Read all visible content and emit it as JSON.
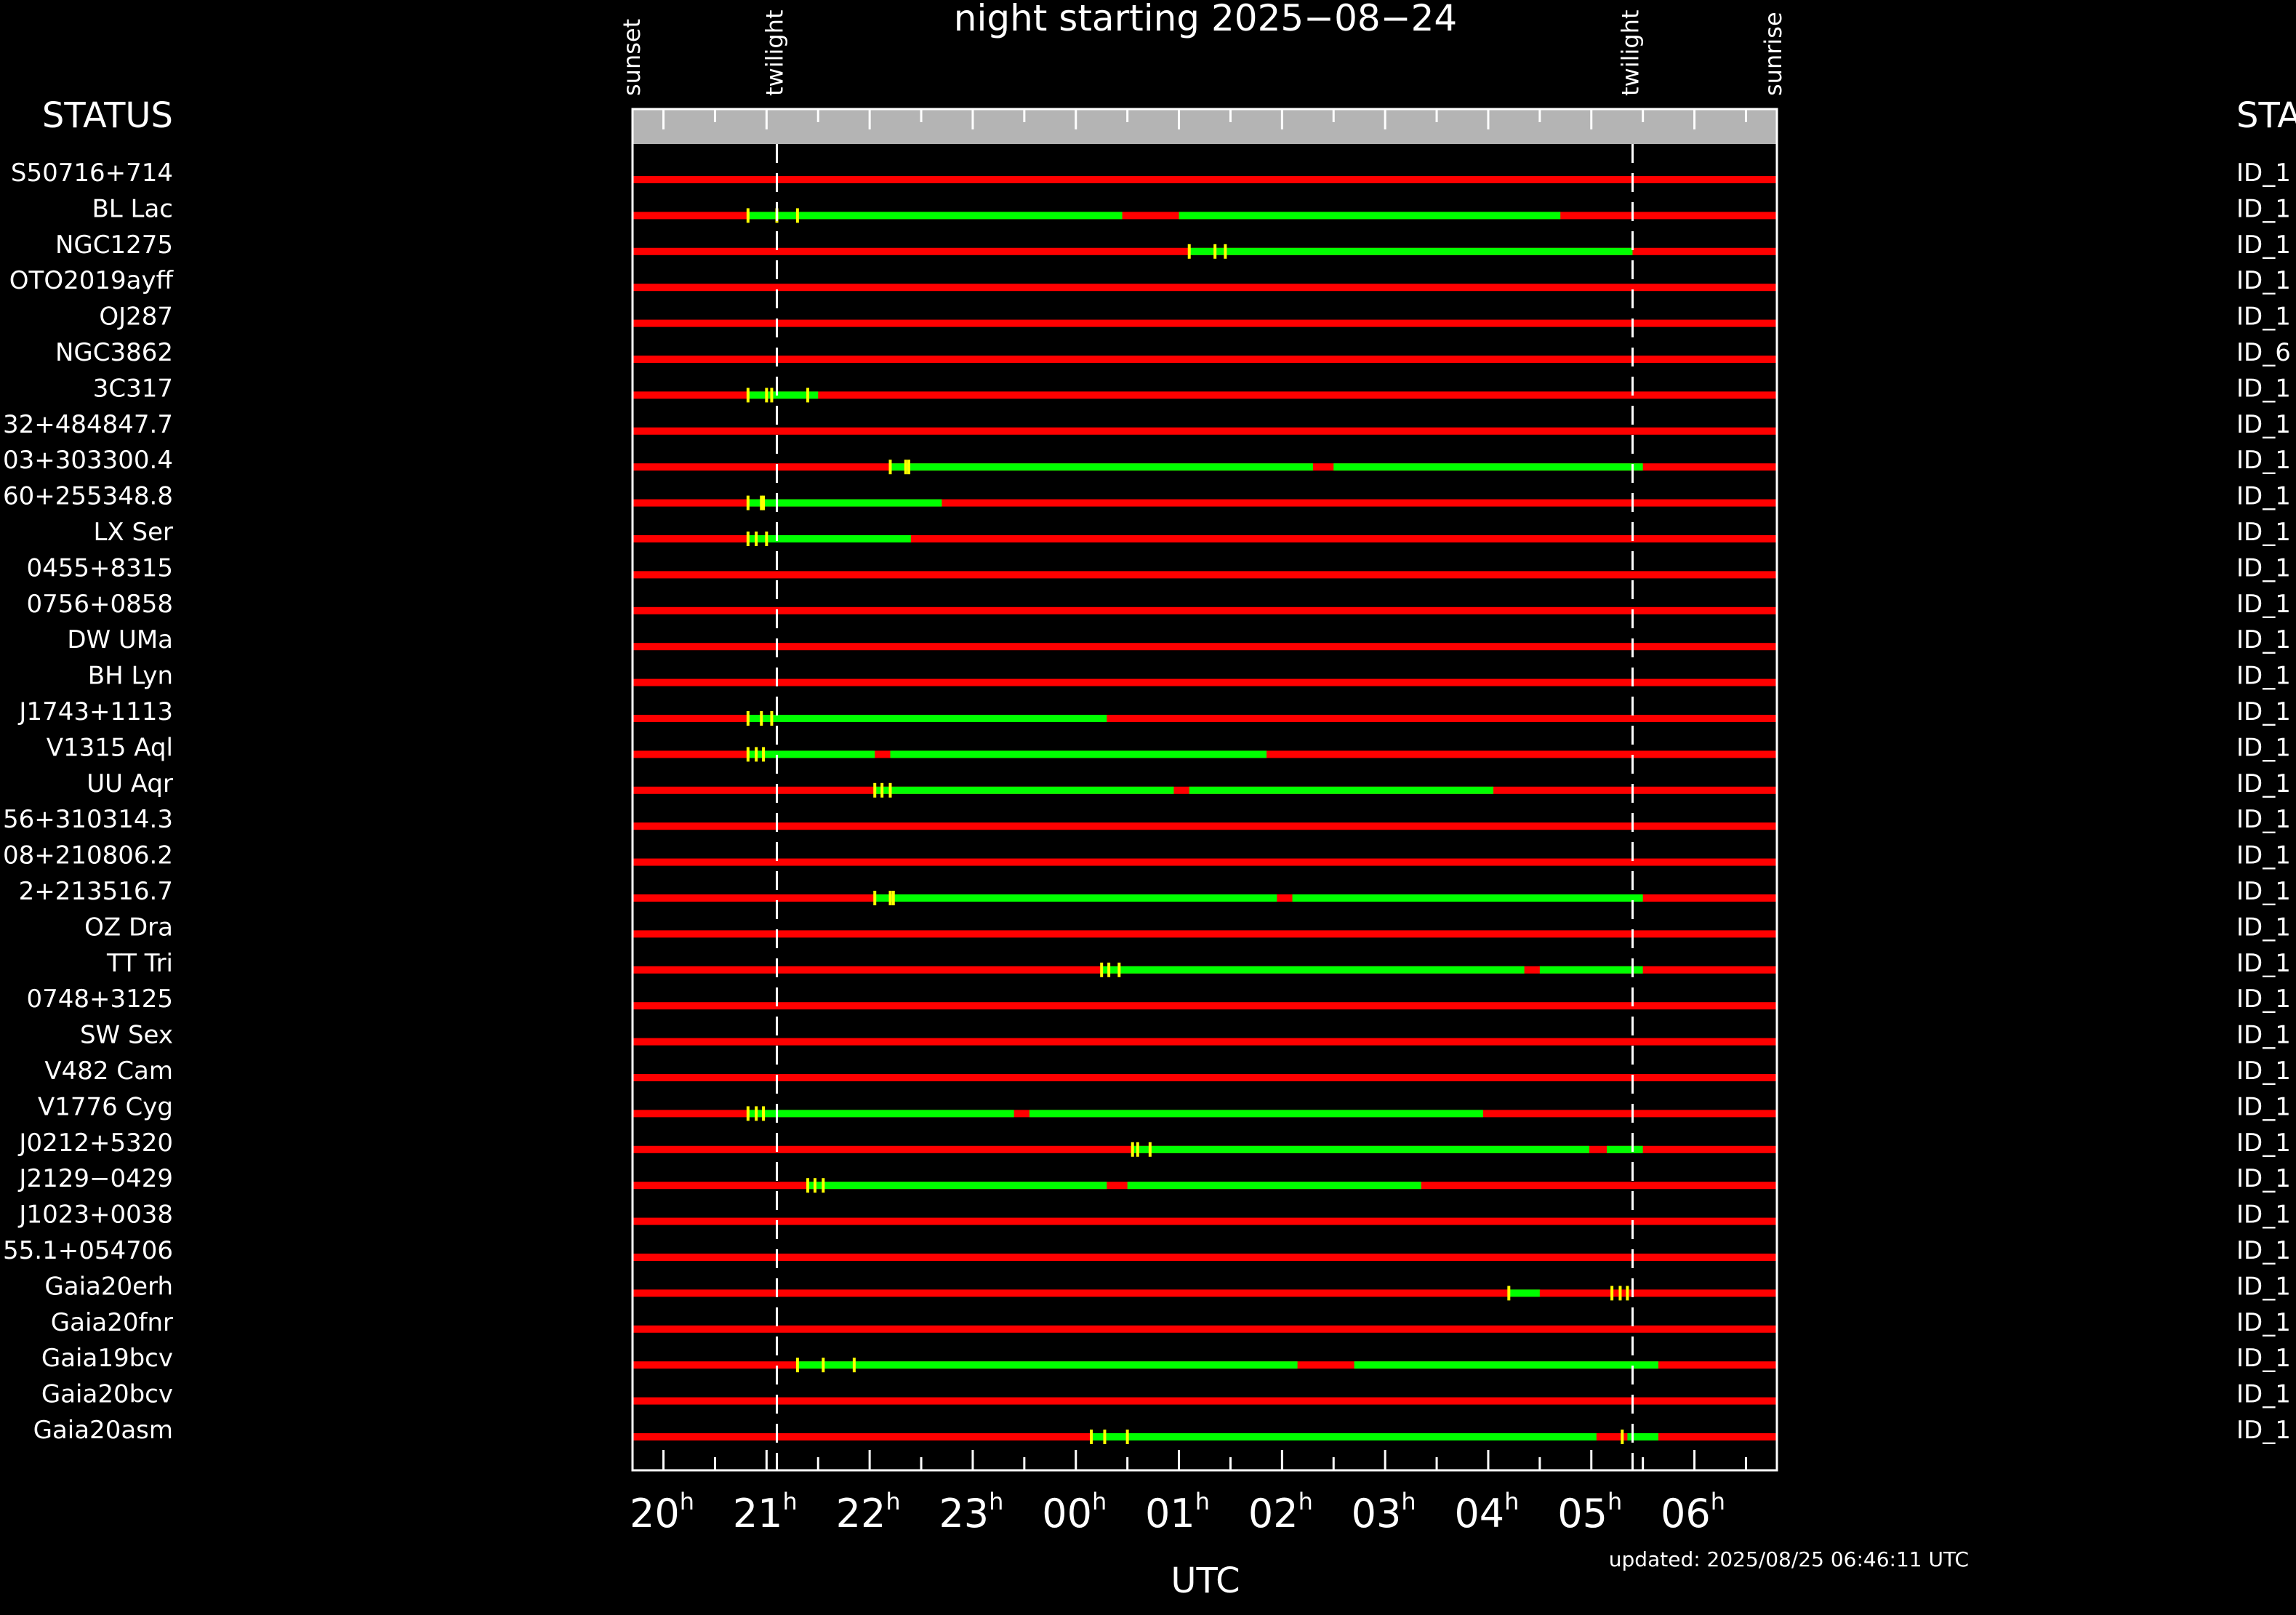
{
  "chart_data": {
    "type": "timeline",
    "title": "night starting 2025−08−24",
    "xlabel": "UTC",
    "updated": "updated: 2025/08/25 06:46:11 UTC",
    "left_header": "STATUS",
    "right_header": "STATUS",
    "x_range_utc_hours": [
      19.7,
      30.8
    ],
    "top_markers": [
      {
        "label": "sunset",
        "utc": 19.7
      },
      {
        "label": "twilight",
        "utc": 21.1
      },
      {
        "label": "twilight",
        "utc": 29.4
      },
      {
        "label": "sunrise",
        "utc": 30.8
      }
    ],
    "dashed_lines_utc": [
      21.1,
      29.4
    ],
    "x_ticks": [
      {
        "label": "20",
        "sup": "h",
        "utc": 20
      },
      {
        "label": "21",
        "sup": "h",
        "utc": 21
      },
      {
        "label": "22",
        "sup": "h",
        "utc": 22
      },
      {
        "label": "23",
        "sup": "h",
        "utc": 23
      },
      {
        "label": "00",
        "sup": "h",
        "utc": 24
      },
      {
        "label": "01",
        "sup": "h",
        "utc": 25
      },
      {
        "label": "02",
        "sup": "h",
        "utc": 26
      },
      {
        "label": "03",
        "sup": "h",
        "utc": 27
      },
      {
        "label": "04",
        "sup": "h",
        "utc": 28
      },
      {
        "label": "05",
        "sup": "h",
        "utc": 29
      },
      {
        "label": "06",
        "sup": "h",
        "utc": 30
      }
    ],
    "colors": {
      "not_visible": "#ff0000",
      "observable": "#00ff00",
      "marker": "#ffff00",
      "band": "#b4b4b4"
    },
    "rows": [
      {
        "name": "S50716+714",
        "status": "ID_1",
        "green": [],
        "markers": []
      },
      {
        "name": "BL Lac",
        "status": "ID_1",
        "green": [
          [
            20.82,
            24.45
          ],
          [
            25.0,
            28.7
          ]
        ],
        "markers": [
          20.82,
          21.1,
          21.3
        ]
      },
      {
        "name": "NGC1275",
        "status": "ID_1",
        "green": [
          [
            25.1,
            29.4
          ]
        ],
        "markers": [
          25.1,
          25.35,
          25.45
        ]
      },
      {
        "name": "OTO2019ayff",
        "status": "ID_1",
        "green": [],
        "markers": []
      },
      {
        "name": "OJ287",
        "status": "ID_1",
        "green": [],
        "markers": []
      },
      {
        "name": "NGC3862",
        "status": "ID_6",
        "green": [],
        "markers": []
      },
      {
        "name": "3C317",
        "status": "ID_1",
        "green": [
          [
            20.82,
            21.5
          ]
        ],
        "markers": [
          20.82,
          21.0,
          21.05,
          21.4
        ]
      },
      {
        "name": "32+484847.7",
        "status": "ID_1",
        "green": [],
        "markers": []
      },
      {
        "name": "03+303300.4",
        "status": "ID_1",
        "green": [
          [
            22.2,
            26.3
          ],
          [
            26.5,
            29.5
          ]
        ],
        "markers": [
          22.2,
          22.35,
          22.38
        ]
      },
      {
        "name": "60+255348.8",
        "status": "ID_1",
        "green": [
          [
            20.82,
            22.7
          ]
        ],
        "markers": [
          20.82,
          20.95,
          20.97
        ]
      },
      {
        "name": "LX Ser",
        "status": "ID_1",
        "green": [
          [
            20.82,
            22.4
          ]
        ],
        "markers": [
          20.82,
          20.9,
          21.0
        ]
      },
      {
        "name": "0455+8315",
        "status": "ID_1",
        "green": [],
        "markers": []
      },
      {
        "name": "0756+0858",
        "status": "ID_1",
        "green": [],
        "markers": []
      },
      {
        "name": "DW UMa",
        "status": "ID_1",
        "green": [],
        "markers": []
      },
      {
        "name": "BH Lyn",
        "status": "ID_1",
        "green": [],
        "markers": []
      },
      {
        "name": "J1743+1113",
        "status": "ID_1",
        "green": [
          [
            20.82,
            24.3
          ]
        ],
        "markers": [
          20.82,
          20.95,
          21.05
        ]
      },
      {
        "name": "V1315 Aql",
        "status": "ID_1",
        "green": [
          [
            20.82,
            22.05
          ],
          [
            22.2,
            25.85
          ]
        ],
        "markers": [
          20.82,
          20.9,
          20.97
        ]
      },
      {
        "name": "UU Aqr",
        "status": "ID_1",
        "green": [
          [
            22.05,
            24.95
          ],
          [
            25.1,
            28.05
          ]
        ],
        "markers": [
          22.05,
          22.12,
          22.2
        ]
      },
      {
        "name": "56+310314.3",
        "status": "ID_1",
        "green": [],
        "markers": []
      },
      {
        "name": "08+210806.2",
        "status": "ID_1",
        "green": [],
        "markers": []
      },
      {
        "name": "2+213516.7",
        "status": "ID_1",
        "green": [
          [
            22.05,
            25.95
          ],
          [
            26.1,
            29.5
          ]
        ],
        "markers": [
          22.05,
          22.2,
          22.23
        ]
      },
      {
        "name": "OZ Dra",
        "status": "ID_1",
        "green": [],
        "markers": []
      },
      {
        "name": "TT Tri",
        "status": "ID_1",
        "green": [
          [
            24.25,
            28.35
          ],
          [
            28.5,
            29.5
          ]
        ],
        "markers": [
          24.25,
          24.32,
          24.42
        ]
      },
      {
        "name": "0748+3125",
        "status": "ID_1",
        "green": [],
        "markers": []
      },
      {
        "name": "SW Sex",
        "status": "ID_1",
        "green": [],
        "markers": []
      },
      {
        "name": "V482 Cam",
        "status": "ID_1",
        "green": [],
        "markers": []
      },
      {
        "name": "V1776 Cyg",
        "status": "ID_1",
        "green": [
          [
            20.82,
            23.4
          ],
          [
            23.55,
            27.95
          ]
        ],
        "markers": [
          20.82,
          20.9,
          20.97
        ]
      },
      {
        "name": "J0212+5320",
        "status": "ID_1",
        "green": [
          [
            24.55,
            28.98
          ],
          [
            29.15,
            29.5
          ]
        ],
        "markers": [
          24.55,
          24.6,
          24.72
        ]
      },
      {
        "name": "J2129−0429",
        "status": "ID_1",
        "green": [
          [
            21.4,
            24.3
          ],
          [
            24.5,
            27.35
          ]
        ],
        "markers": [
          21.4,
          21.47,
          21.55
        ]
      },
      {
        "name": "J1023+0038",
        "status": "ID_1",
        "green": [],
        "markers": []
      },
      {
        "name": "55.1+054706",
        "status": "ID_1",
        "green": [],
        "markers": []
      },
      {
        "name": "Gaia20erh",
        "status": "ID_1",
        "green": [
          [
            28.2,
            28.5
          ]
        ],
        "markers": [
          28.2,
          29.2,
          29.28,
          29.35
        ]
      },
      {
        "name": "Gaia20fnr",
        "status": "ID_1",
        "green": [],
        "markers": []
      },
      {
        "name": "Gaia19bcv",
        "status": "ID_1",
        "green": [
          [
            21.3,
            26.15
          ],
          [
            26.7,
            29.65
          ]
        ],
        "markers": [
          21.3,
          21.55,
          21.85
        ]
      },
      {
        "name": "Gaia20bcv",
        "status": "ID_1",
        "green": [],
        "markers": []
      },
      {
        "name": "Gaia20asm",
        "status": "ID_1",
        "green": [
          [
            24.15,
            29.05
          ],
          [
            29.35,
            29.65
          ]
        ],
        "markers": [
          24.15,
          24.28,
          24.5,
          29.3
        ]
      }
    ]
  }
}
